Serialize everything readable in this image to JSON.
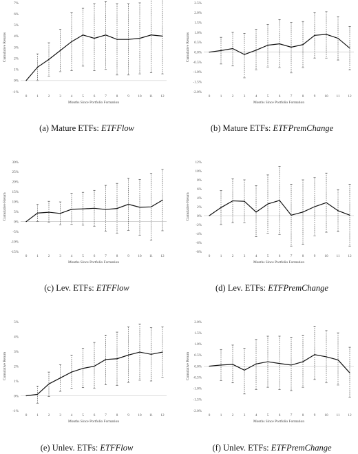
{
  "chart_data": [
    {
      "type": "line",
      "caption": {
        "label": "(a) Mature ETFs: ",
        "var": "ETFFlow"
      },
      "xlabel": "Months Since Portfolio Formation",
      "ylabel": "Cumulative Returns",
      "x": [
        0,
        1,
        2,
        3,
        4,
        5,
        6,
        7,
        8,
        9,
        10,
        11,
        12
      ],
      "xlim": [
        0,
        12
      ],
      "ylim": [
        -1,
        7
      ],
      "yticks": [
        -1,
        0,
        1,
        2,
        3,
        4,
        5,
        6,
        7
      ],
      "y_format": "percent0",
      "values": [
        0.0,
        1.2,
        1.9,
        2.7,
        3.5,
        4.1,
        3.8,
        4.1,
        3.7,
        3.7,
        3.8,
        4.1,
        4.0
      ],
      "upper": [
        0.0,
        2.4,
        3.4,
        4.6,
        6.1,
        6.5,
        6.9,
        7.1,
        6.9,
        6.9,
        7.0,
        7.5,
        7.3
      ],
      "lower": [
        0.0,
        0.0,
        0.4,
        0.8,
        0.9,
        1.3,
        0.9,
        1.0,
        0.5,
        0.5,
        0.6,
        0.7,
        0.6
      ]
    },
    {
      "type": "line",
      "caption": {
        "label": "(b) Mature ETFs: ",
        "var": "ETFPremChange"
      },
      "xlabel": "Months Since Portfolio Formation",
      "ylabel": "Cumulative Returns",
      "x": [
        0,
        1,
        2,
        3,
        4,
        5,
        6,
        7,
        8,
        9,
        10,
        11,
        12
      ],
      "xlim": [
        0,
        12
      ],
      "ylim": [
        -2,
        2.5
      ],
      "yticks": [
        -2,
        -1.5,
        -1,
        -0.5,
        0,
        0.5,
        1,
        1.5,
        2,
        2.5
      ],
      "y_format": "percent1",
      "values": [
        0.0,
        0.08,
        0.18,
        -0.12,
        0.1,
        0.35,
        0.42,
        0.25,
        0.38,
        0.85,
        0.9,
        0.7,
        0.2
      ],
      "upper": [
        0.0,
        0.75,
        1.0,
        0.95,
        1.15,
        1.4,
        1.65,
        1.5,
        1.55,
        2.0,
        2.05,
        1.8,
        1.3
      ],
      "lower": [
        0.0,
        -0.6,
        -0.7,
        -1.3,
        -0.9,
        -0.75,
        -0.8,
        -1.05,
        -0.8,
        -0.3,
        -0.3,
        -0.4,
        -0.9
      ]
    },
    {
      "type": "line",
      "caption": {
        "label": "(c) Lev. ETFs: ",
        "var": "ETFFlow"
      },
      "xlabel": "Months Since Portfolio Formation",
      "ylabel": "Cumulative Return",
      "x": [
        0,
        1,
        2,
        3,
        4,
        5,
        6,
        7,
        8,
        9,
        10,
        11,
        12
      ],
      "xlim": [
        0,
        12
      ],
      "ylim": [
        -15,
        30
      ],
      "yticks": [
        -15,
        -10,
        -5,
        0,
        5,
        10,
        15,
        20,
        25,
        30
      ],
      "y_format": "percent0",
      "values": [
        0.0,
        4.3,
        4.7,
        4.1,
        6.2,
        6.4,
        6.7,
        6.1,
        6.6,
        8.7,
        7.2,
        7.4,
        10.8
      ],
      "upper": [
        0.0,
        8.6,
        10.2,
        9.9,
        14.2,
        14.7,
        15.7,
        18.2,
        19.2,
        21.7,
        21.2,
        24.2,
        26.2
      ],
      "lower": [
        0.0,
        0.0,
        -0.3,
        -1.6,
        -1.4,
        -1.8,
        -2.3,
        -4.9,
        -5.9,
        -4.4,
        -6.8,
        -9.3,
        -4.6
      ]
    },
    {
      "type": "line",
      "caption": {
        "label": "(d) Lev. ETFs: ",
        "var": "ETFPremChange"
      },
      "xlabel": "Months Since Portfolio Formation",
      "ylabel": "Cumulative Return",
      "x": [
        0,
        1,
        2,
        3,
        4,
        5,
        6,
        7,
        8,
        9,
        10,
        11,
        12
      ],
      "xlim": [
        0,
        12
      ],
      "ylim": [
        -8,
        12
      ],
      "yticks": [
        -8,
        -6,
        -4,
        -2,
        0,
        2,
        4,
        6,
        8,
        10,
        12
      ],
      "y_format": "percent0",
      "values": [
        0.0,
        1.8,
        3.3,
        3.2,
        0.8,
        2.6,
        3.4,
        0.1,
        0.8,
        2.0,
        2.9,
        1.1,
        0.1
      ],
      "upper": [
        0.0,
        5.6,
        8.2,
        8.0,
        6.7,
        9.1,
        11.0,
        7.0,
        8.0,
        8.5,
        9.5,
        5.8,
        7.0
      ],
      "lower": [
        0.0,
        -2.0,
        -1.6,
        -1.6,
        -4.7,
        -3.9,
        -4.2,
        -6.8,
        -6.4,
        -4.5,
        -3.7,
        -3.6,
        -6.8
      ]
    },
    {
      "type": "line",
      "caption": {
        "label": "(e) Unlev. ETFs: ",
        "var": "ETFFlow"
      },
      "xlabel": "Months Since Portfolio Formation",
      "ylabel": "Cumulative Return",
      "x": [
        0,
        1,
        2,
        3,
        4,
        5,
        6,
        7,
        8,
        9,
        10,
        11,
        12
      ],
      "xlim": [
        0,
        12
      ],
      "ylim": [
        -1,
        5
      ],
      "yticks": [
        -1,
        0,
        1,
        2,
        3,
        4,
        5
      ],
      "y_format": "percent0",
      "values": [
        0.0,
        0.1,
        0.8,
        1.2,
        1.6,
        1.85,
        2.0,
        2.45,
        2.5,
        2.75,
        2.95,
        2.8,
        2.95
      ],
      "upper": [
        0.0,
        0.65,
        1.6,
        2.1,
        2.75,
        3.2,
        3.6,
        4.1,
        4.3,
        4.65,
        4.85,
        4.6,
        4.65
      ],
      "lower": [
        0.0,
        -0.5,
        -0.05,
        0.3,
        0.5,
        0.55,
        0.5,
        0.75,
        0.7,
        0.9,
        1.05,
        1.0,
        1.25
      ]
    },
    {
      "type": "line",
      "caption": {
        "label": "(f) Unlev. ETFs: ",
        "var": "ETFPremChange"
      },
      "xlabel": "Months Since Portfolio Formation",
      "ylabel": "Cumulative Return",
      "x": [
        0,
        1,
        2,
        3,
        4,
        5,
        6,
        7,
        8,
        9,
        10,
        11,
        12
      ],
      "xlim": [
        0,
        12
      ],
      "ylim": [
        -2,
        2
      ],
      "yticks": [
        -2,
        -1.5,
        -1,
        -0.5,
        0,
        0.5,
        1,
        1.5,
        2
      ],
      "y_format": "percent1",
      "values": [
        0.0,
        0.05,
        0.08,
        -0.18,
        0.1,
        0.2,
        0.12,
        0.05,
        0.2,
        0.52,
        0.42,
        0.28,
        -0.3
      ],
      "upper": [
        0.0,
        0.75,
        0.95,
        0.8,
        1.2,
        1.35,
        1.35,
        1.3,
        1.4,
        1.8,
        1.6,
        1.5,
        0.85
      ],
      "lower": [
        0.0,
        -0.65,
        -0.75,
        -1.25,
        -1.05,
        -0.95,
        -1.05,
        -1.1,
        -0.95,
        -0.6,
        -0.75,
        -0.85,
        -1.4
      ]
    }
  ]
}
